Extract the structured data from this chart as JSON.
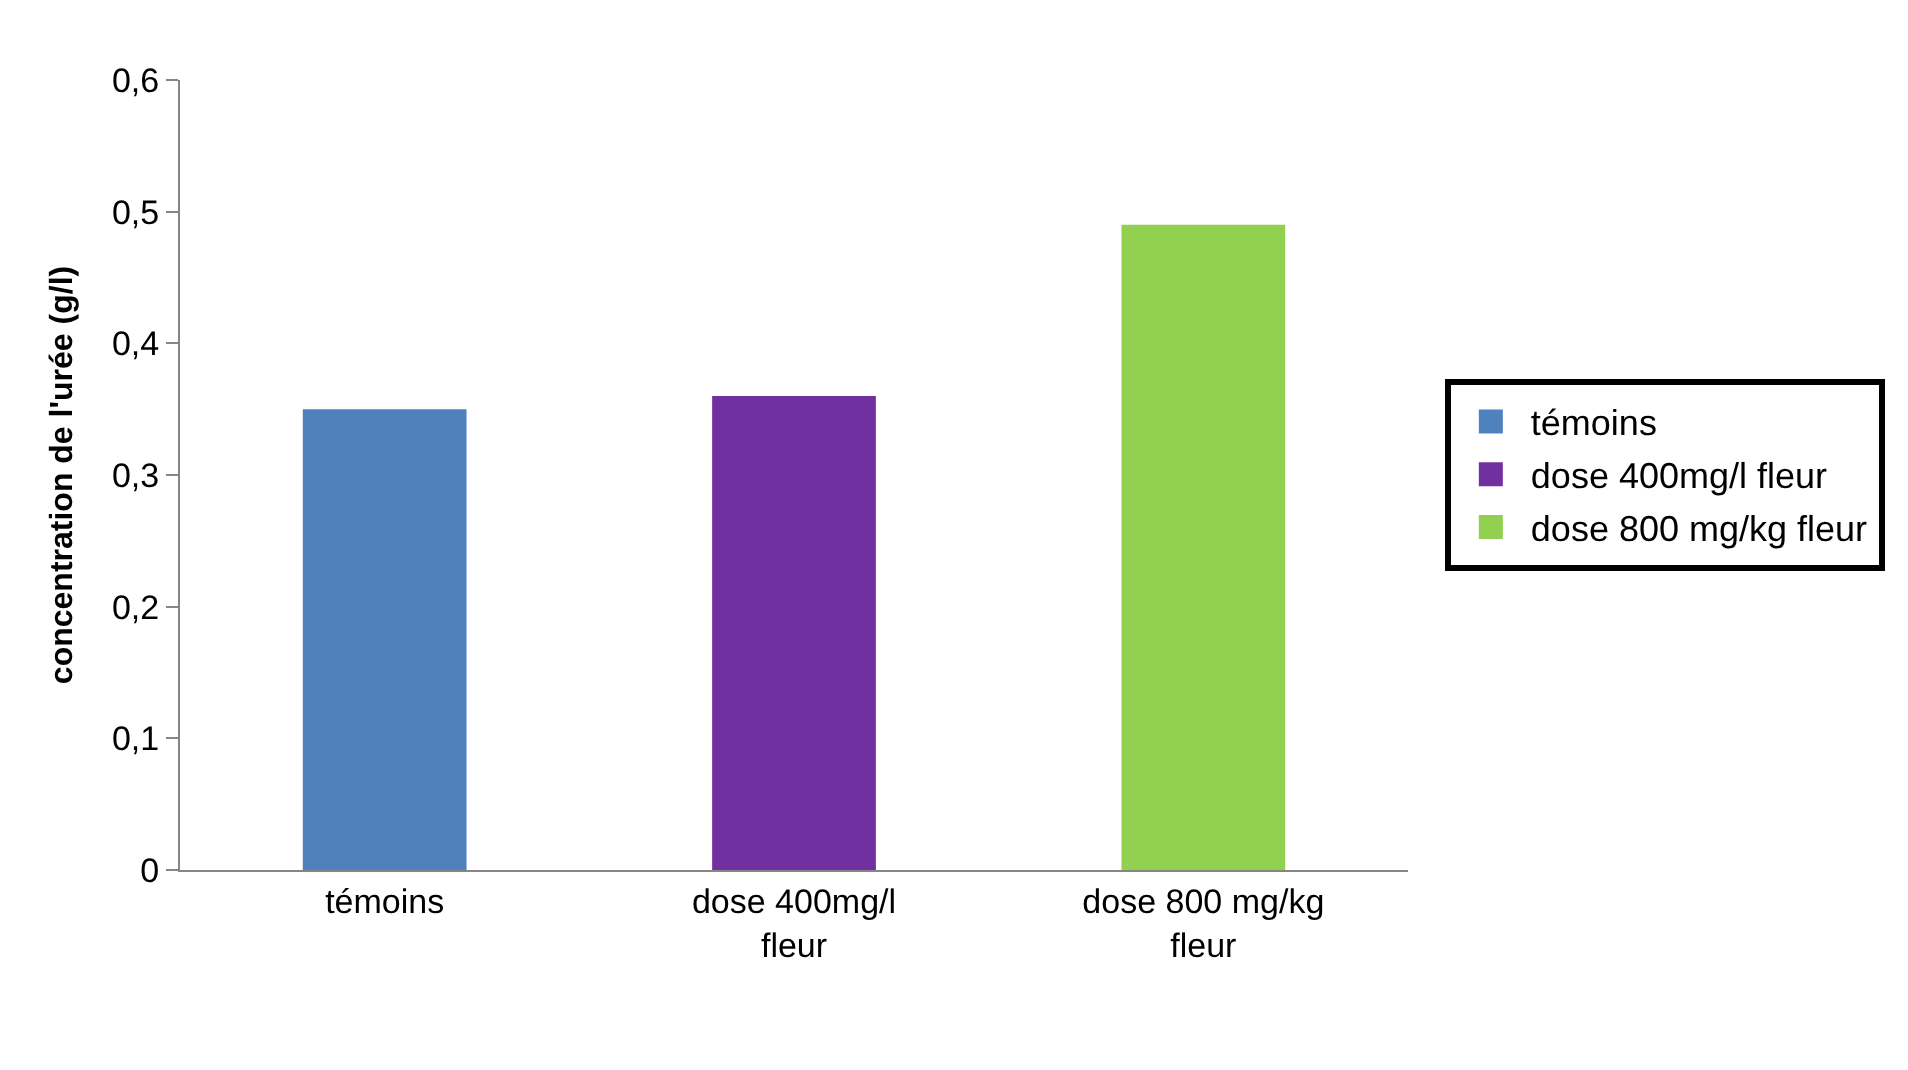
{
  "chart_data": {
    "type": "bar",
    "categories": [
      "témoins",
      "dose 400mg/l fleur",
      "dose 800 mg/kg fleur"
    ],
    "series": [
      {
        "name": "témoins",
        "color": "#4f81bd",
        "values": [
          0.35,
          null,
          null
        ]
      },
      {
        "name": "dose 400mg/l fleur",
        "color": "#7030a0",
        "values": [
          null,
          0.36,
          null
        ]
      },
      {
        "name": "dose 800 mg/kg fleur",
        "color": "#92d050",
        "values": [
          null,
          null,
          0.49
        ]
      }
    ],
    "ylabel": "concentration de l'urée (g/l)",
    "ylim": [
      0,
      0.6
    ],
    "yticks": [
      0,
      {
        "value": 0.1,
        "label": "0,1"
      },
      {
        "value": 0.2,
        "label": "0,2"
      },
      {
        "value": 0.3,
        "label": "0,3"
      },
      {
        "value": 0.4,
        "label": "0,4"
      },
      {
        "value": 0.5,
        "label": "0,5"
      },
      {
        "value": 0.6,
        "label": "0,6"
      }
    ],
    "legend": "right"
  }
}
